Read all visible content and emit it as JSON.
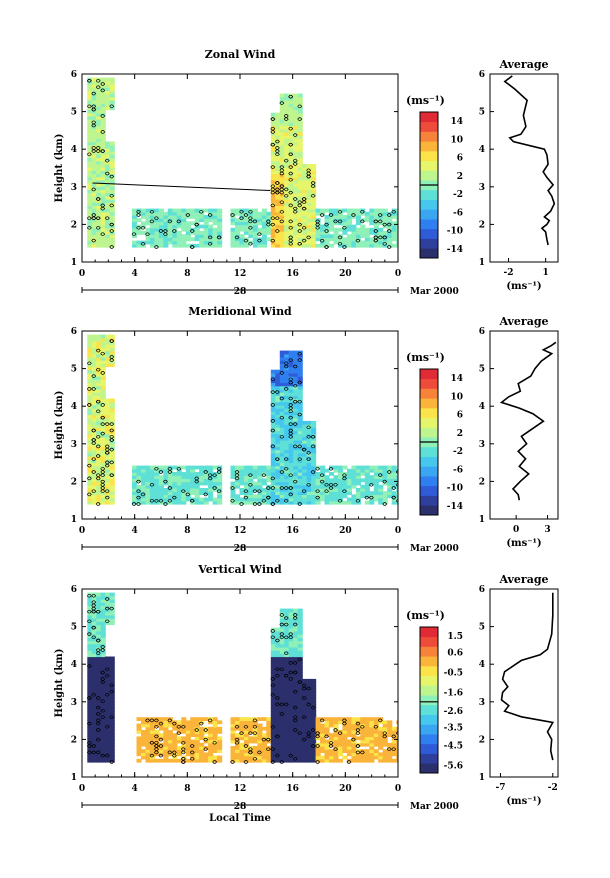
{
  "chart_data": [
    {
      "type": "heatmap",
      "title": "Zonal Wind",
      "ylabel": "Height (km)",
      "xlim": [
        0,
        24
      ],
      "ylim": [
        1,
        6
      ],
      "xticks": [
        "0",
        "4",
        "8",
        "12",
        "16",
        "20",
        "0"
      ],
      "yticks": [
        "1",
        "2",
        "3",
        "4",
        "5",
        "6"
      ],
      "date_axis": {
        "day": "28",
        "month": "Mar 2000"
      },
      "colorbar": {
        "unit": "(ms⁻¹)",
        "min": -16,
        "max": 16,
        "ticks": [
          "14",
          "10",
          "6",
          "2",
          "-2",
          "-6",
          "-10",
          "-14"
        ],
        "tick_values": [
          14,
          10,
          6,
          2,
          -2,
          -6,
          -10,
          -14
        ]
      },
      "average": {
        "title": "Average",
        "xlabel": "(ms⁻¹)",
        "xlim": [
          -3.5,
          2
        ],
        "xticks": [
          "-2",
          "1"
        ],
        "xtick_values": [
          -2,
          1
        ],
        "profile": [
          [
            1.2,
            1.45
          ],
          [
            1.1,
            1.6
          ],
          [
            1.0,
            1.8
          ],
          [
            0.7,
            1.9
          ],
          [
            1.1,
            2.0
          ],
          [
            1.3,
            2.1
          ],
          [
            0.9,
            2.2
          ],
          [
            1.4,
            2.35
          ],
          [
            1.7,
            2.55
          ],
          [
            1.5,
            2.75
          ],
          [
            1.2,
            2.9
          ],
          [
            1.6,
            3.05
          ],
          [
            1.1,
            3.25
          ],
          [
            0.8,
            3.4
          ],
          [
            1.2,
            3.6
          ],
          [
            1.1,
            3.85
          ],
          [
            0.9,
            4.0
          ],
          [
            -1.6,
            4.2
          ],
          [
            -1.9,
            4.3
          ],
          [
            -1.0,
            4.4
          ],
          [
            -0.6,
            4.6
          ],
          [
            -0.8,
            4.9
          ],
          [
            -0.5,
            5.3
          ],
          [
            -1.5,
            5.6
          ],
          [
            -2.3,
            5.8
          ],
          [
            -1.7,
            5.95
          ]
        ]
      }
    },
    {
      "type": "heatmap",
      "title": "Meridional Wind",
      "ylabel": "Height (km)",
      "xlim": [
        0,
        24
      ],
      "ylim": [
        1,
        6
      ],
      "xticks": [
        "0",
        "4",
        "8",
        "12",
        "16",
        "20",
        "0"
      ],
      "yticks": [
        "1",
        "2",
        "3",
        "4",
        "5",
        "6"
      ],
      "date_axis": {
        "day": "28",
        "month": "Mar 2000"
      },
      "colorbar": {
        "unit": "(ms⁻¹)",
        "min": -16,
        "max": 16,
        "ticks": [
          "14",
          "10",
          "6",
          "2",
          "-2",
          "-6",
          "-10",
          "-14"
        ],
        "tick_values": [
          14,
          10,
          6,
          2,
          -2,
          -6,
          -10,
          -14
        ]
      },
      "average": {
        "title": "Average",
        "xlabel": "(ms⁻¹)",
        "xlim": [
          -2.5,
          4
        ],
        "xticks": [
          "0",
          "3"
        ],
        "xtick_values": [
          0,
          3
        ],
        "profile": [
          [
            0.3,
            1.5
          ],
          [
            0.2,
            1.65
          ],
          [
            -0.3,
            1.8
          ],
          [
            0.4,
            2.0
          ],
          [
            1.2,
            2.2
          ],
          [
            0.3,
            2.4
          ],
          [
            0.9,
            2.6
          ],
          [
            0.2,
            2.8
          ],
          [
            1.0,
            3.0
          ],
          [
            0.5,
            3.2
          ],
          [
            2.6,
            3.6
          ],
          [
            1.6,
            3.8
          ],
          [
            0.3,
            3.95
          ],
          [
            -1.4,
            4.1
          ],
          [
            -0.7,
            4.25
          ],
          [
            0.4,
            4.4
          ],
          [
            0.2,
            4.6
          ],
          [
            1.4,
            4.8
          ],
          [
            1.8,
            5.0
          ],
          [
            2.4,
            5.2
          ],
          [
            3.4,
            5.4
          ],
          [
            2.6,
            5.5
          ],
          [
            3.3,
            5.6
          ],
          [
            3.8,
            5.7
          ]
        ]
      }
    },
    {
      "type": "heatmap",
      "title": "Vertical Wind",
      "ylabel": "Height (km)",
      "xlabel": "Local Time",
      "xlim": [
        0,
        24
      ],
      "ylim": [
        1,
        6
      ],
      "xticks": [
        "0",
        "4",
        "8",
        "12",
        "16",
        "20",
        "0"
      ],
      "yticks": [
        "1",
        "2",
        "3",
        "4",
        "5",
        "6"
      ],
      "date_axis": {
        "day": "28",
        "month": "Mar 2000"
      },
      "colorbar": {
        "unit": "(ms⁻¹)",
        "min": -6,
        "max": 2,
        "ticks": [
          "1.5",
          "0.6",
          "-0.5",
          "-1.6",
          "-2.6",
          "-3.5",
          "-4.5",
          "-5.6"
        ],
        "tick_values": [
          1.5,
          0.6,
          -0.5,
          -1.6,
          -2.6,
          -3.5,
          -4.5,
          -5.6
        ]
      },
      "average": {
        "title": "Average",
        "xlabel": "(ms⁻¹)",
        "xlim": [
          -8,
          -1.5
        ],
        "xticks": [
          "-7",
          "-2"
        ],
        "xtick_values": [
          -7,
          -2
        ],
        "profile": [
          [
            -2.0,
            1.45
          ],
          [
            -2.2,
            1.7
          ],
          [
            -2.1,
            2.0
          ],
          [
            -2.5,
            2.2
          ],
          [
            -2.0,
            2.45
          ],
          [
            -5.0,
            2.6
          ],
          [
            -6.6,
            2.75
          ],
          [
            -6.2,
            2.9
          ],
          [
            -6.9,
            3.05
          ],
          [
            -6.8,
            3.25
          ],
          [
            -6.3,
            3.4
          ],
          [
            -6.8,
            3.6
          ],
          [
            -6.6,
            3.8
          ],
          [
            -5.0,
            4.1
          ],
          [
            -3.2,
            4.25
          ],
          [
            -2.5,
            4.4
          ],
          [
            -2.1,
            4.8
          ],
          [
            -2.0,
            5.3
          ],
          [
            -2.0,
            5.9
          ]
        ]
      }
    }
  ]
}
